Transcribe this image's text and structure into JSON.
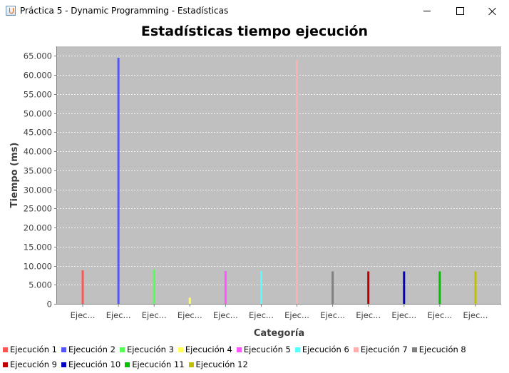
{
  "window": {
    "title": "Práctica 5 - Dynamic Programming - Estadísticas",
    "icon": "java-cup-icon"
  },
  "chart_data": {
    "type": "bar",
    "title": "Estadísticas tiempo ejecución",
    "xlabel": "Categoría",
    "ylabel": "Tiempo (ms)",
    "ylim": [
      0,
      67500
    ],
    "yticks": [
      0,
      5000,
      10000,
      15000,
      20000,
      25000,
      30000,
      35000,
      40000,
      45000,
      50000,
      55000,
      60000,
      65000
    ],
    "ytick_labels": [
      "0",
      "5.000",
      "10.000",
      "15.000",
      "20.000",
      "25.000",
      "30.000",
      "35.000",
      "40.000",
      "45.000",
      "50.000",
      "55.000",
      "60.000",
      "65.000"
    ],
    "categories": [
      "Ejec...",
      "Ejec...",
      "Ejec...",
      "Ejec...",
      "Ejec...",
      "Ejec...",
      "Ejec...",
      "Ejec...",
      "Ejec...",
      "Ejec...",
      "Ejec...",
      "Ejec..."
    ],
    "grid": true,
    "legend_position": "bottom",
    "background": "#c0c0c0",
    "series": [
      {
        "name": "Ejecución 1",
        "color": "#ff5555",
        "value": 8800
      },
      {
        "name": "Ejecución 2",
        "color": "#5555ff",
        "value": 64500
      },
      {
        "name": "Ejecución 3",
        "color": "#55ff55",
        "value": 9000
      },
      {
        "name": "Ejecución 4",
        "color": "#ffff55",
        "value": 1600
      },
      {
        "name": "Ejecución 5",
        "color": "#ff55ff",
        "value": 8600
      },
      {
        "name": "Ejecución 6",
        "color": "#55ffff",
        "value": 8600
      },
      {
        "name": "Ejecución 7",
        "color": "#ffafaf",
        "value": 64000
      },
      {
        "name": "Ejecución 8",
        "color": "#808080",
        "value": 8500
      },
      {
        "name": "Ejecución 9",
        "color": "#c00000",
        "value": 8500
      },
      {
        "name": "Ejecución 10",
        "color": "#0000c0",
        "value": 8500
      },
      {
        "name": "Ejecución 11",
        "color": "#00c000",
        "value": 8500
      },
      {
        "name": "Ejecución 12",
        "color": "#c0c000",
        "value": 8500
      }
    ]
  }
}
